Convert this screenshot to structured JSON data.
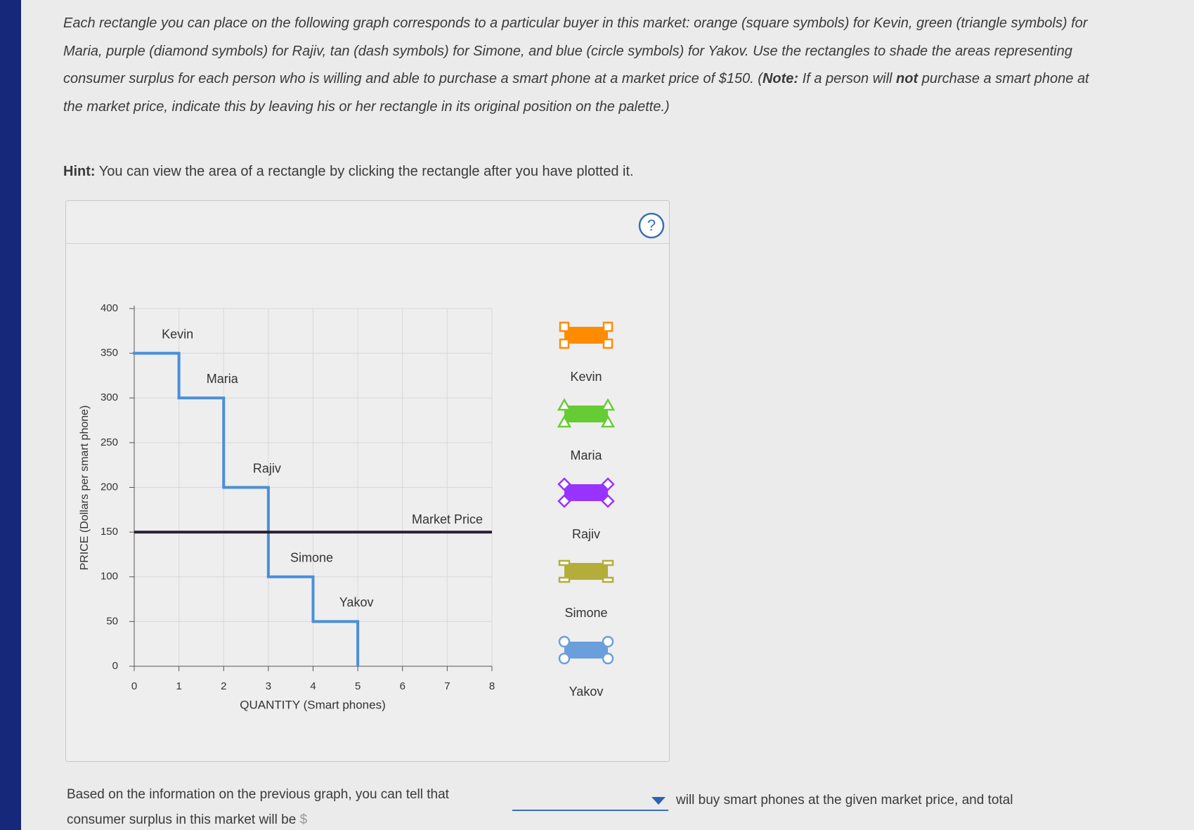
{
  "instructions": {
    "part1": "Each rectangle you can place on the following graph corresponds to a particular buyer in this market: orange (square symbols) for Kevin, green (triangle symbols) for Maria, purple (diamond symbols) for Rajiv, tan (dash symbols) for Simone, and blue (circle symbols) for Yakov. Use the rectangles to shade the areas representing consumer surplus for each person who is willing and able to purchase a smart phone at a market price of $150. (",
    "note_label": "Note:",
    "part2": " If a person will ",
    "emphasis": "not",
    "part3": " purchase a smart phone at the market price, indicate this by leaving his or her rectangle in its original position on the palette.)"
  },
  "hint": {
    "label": "Hint:",
    "text": " You can view the area of a rectangle by clicking the rectangle after you have plotted it."
  },
  "graph": {
    "help_icon": "?",
    "y_axis_label": "PRICE (Dollars per smart phone)",
    "x_axis_label": "QUANTITY (Smart phones)",
    "xlim": [
      0,
      8
    ],
    "xticks": [
      0,
      1,
      2,
      3,
      4,
      5,
      6,
      7,
      8
    ],
    "ylim": [
      0,
      400
    ],
    "yticks": [
      0,
      50,
      100,
      150,
      200,
      250,
      300,
      350,
      400
    ],
    "grid": true,
    "demand_color": "#4a8fd8",
    "buyers": [
      {
        "name": "Kevin",
        "value": 350,
        "color": "#ff8c00",
        "marker": "square"
      },
      {
        "name": "Maria",
        "value": 300,
        "color": "#66cc33",
        "marker": "triangle"
      },
      {
        "name": "Rajiv",
        "value": 200,
        "color": "#9933ff",
        "marker": "diamond"
      },
      {
        "name": "Simone",
        "value": 100,
        "color": "#b5ad3a",
        "marker": "dash"
      },
      {
        "name": "Yakov",
        "value": 50,
        "color": "#6a9fdc",
        "marker": "circle"
      }
    ],
    "market_price": {
      "label": "Market Price",
      "value": 150,
      "color": "#2a1f33"
    }
  },
  "question": {
    "part1": "Based on the information on the previous graph, you can tell that",
    "part2": "will buy smart phones at the given market price, and total",
    "part3": "consumer surplus in this market will be",
    "currency": "$"
  }
}
